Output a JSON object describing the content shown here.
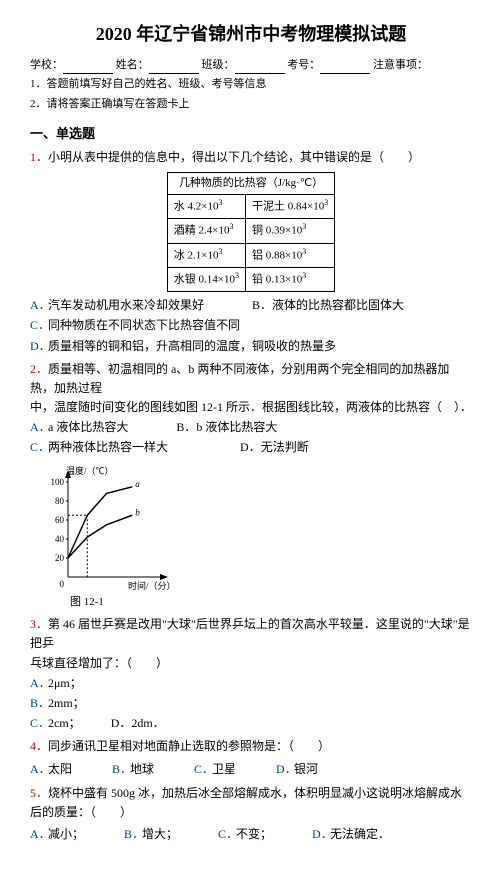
{
  "title": "2020 年辽宁省锦州市中考物理模拟试题",
  "header": {
    "school_label": "学校：",
    "name_label": "姓名：",
    "class_label": "班级：",
    "examno_label": "考号：",
    "notes_label": "注意事项：",
    "note1": "1．答题前填写好自己的姓名、班级、考号等信息",
    "note2": "2．请将答案正确填写在答题卡上"
  },
  "section1": "一、单选题",
  "q1": {
    "num": "1．",
    "stem": "小明从表中提供的信息中，得出以下几个结论，其中错误的是（　　）",
    "table_caption": "几种物质的比热容（J/kg·℃）",
    "rows": [
      [
        "水 4.2×10",
        "3",
        "干泥土 0.84×10",
        "3"
      ],
      [
        "酒精 2.4×10",
        "3",
        "铜 0.39×10",
        "3"
      ],
      [
        "冰 2.1×10",
        "3",
        "铝 0.88×10",
        "3"
      ],
      [
        "水银 0.14×10",
        "3",
        "铅 0.13×10",
        "3"
      ]
    ],
    "optA": "汽车发动机用水来冷却效果好",
    "optB_inline": "B．液体的比热容都比固体大",
    "optC": "同种物质在不同状态下比热容值不同",
    "optD": "质量相等的铜和铝，升高相同的温度，铜吸收的热量多"
  },
  "q2": {
    "num": "2．",
    "stem_p1": "质量相等、初温相同的 a、b 两种不同液体，分别用两个完全相同的加热器加热，加热过程",
    "stem_p2": "中，温度随时间变化的图线如图 12-1 所示．根据图线比较，两液体的比热容（　）．",
    "optA": "a 液体比热容大",
    "optB_inline": "B．b 液体比热容大",
    "optC": "两种液体比热容一样大",
    "optD_inline": "D．无法判断",
    "chart": {
      "ylabel": "温度/（℃）",
      "xlabel": "时间/（分）",
      "fig_label": "图 12-1",
      "ymin": 0,
      "ymax": 100,
      "yticks": [
        20,
        40,
        60,
        80,
        100
      ],
      "xmax": 7,
      "line_a": [
        [
          0,
          20
        ],
        [
          1.5,
          65
        ],
        [
          3,
          88
        ],
        [
          5,
          95
        ]
      ],
      "line_b": [
        [
          0,
          20
        ],
        [
          1.5,
          42
        ],
        [
          3,
          55
        ],
        [
          5,
          65
        ]
      ],
      "axis_color": "#000000",
      "dash_color": "#000000",
      "label_a": "a",
      "label_b": "b",
      "fontsize": 9
    }
  },
  "q3": {
    "num": "3．",
    "stem_p1": "第 46 届世乒赛是改用\"大球\"后世界乒坛上的首次高水平较量．这里说的\"大球\"是把乒",
    "stem_p2": "乓球直径增加了：（　　）",
    "optA": "2μm；",
    "optB": "2mm；",
    "optC": "2cm；",
    "optD_inline": "D．2dm．"
  },
  "q4": {
    "num": "4．",
    "stem": "同步通讯卫星相对地面静止选取的参照物是：（　　）",
    "optA": "太阳",
    "optB": "地球",
    "optC": "卫星",
    "optD": "银河"
  },
  "q5": {
    "num": "5．",
    "stem": "烧杯中盛有 500g 冰，加热后冰全部熔解成水，体积明显减小这说明冰熔解成水后的质量：（　　）",
    "optA": "减小；",
    "optB": "增大；",
    "optC": "不变；",
    "optD": "无法确定．"
  }
}
